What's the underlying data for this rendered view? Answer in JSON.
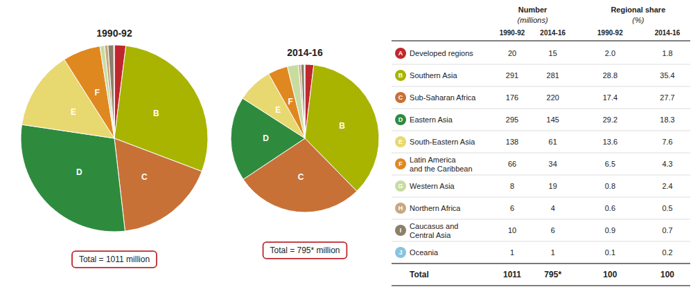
{
  "chart_data": [
    {
      "type": "pie",
      "title": "1990-92",
      "categories": [
        null,
        "B",
        "C",
        "D",
        "E",
        "F",
        null,
        null,
        null,
        null
      ],
      "values": [
        20,
        291,
        176,
        295,
        138,
        66,
        8,
        6,
        10,
        1
      ],
      "colors": [
        "#c0272d",
        "#a8b400",
        "#c87137",
        "#2e8b3e",
        "#e8d870",
        "#e08820",
        "#c8dca0",
        "#c8a882",
        "#8b8068",
        "#88c4e0"
      ],
      "annotations": [
        "Total = 1011 million"
      ]
    },
    {
      "type": "pie",
      "title": "2014-16",
      "categories": [
        null,
        "B",
        "C",
        "D",
        "E",
        "F",
        null,
        null,
        null,
        null
      ],
      "values": [
        15,
        281,
        220,
        145,
        61,
        34,
        19,
        4,
        6,
        1
      ],
      "colors": [
        "#c0272d",
        "#a8b400",
        "#c87137",
        "#2e8b3e",
        "#e8d870",
        "#e08820",
        "#c8dca0",
        "#c8a882",
        "#8b8068",
        "#88c4e0"
      ],
      "annotations": [
        "Total = 795* million"
      ]
    },
    {
      "type": "table",
      "column_groups": [
        {
          "title": "Number",
          "subtitle": "(millions)"
        },
        {
          "title": "Regional share",
          "subtitle": "(%)"
        }
      ],
      "columns": [
        "1990-92",
        "2014-16",
        "1990-92",
        "2014-16"
      ],
      "rows": [
        {
          "key": "A",
          "name": "Developed regions",
          "color": "#c0272d",
          "values": [
            20,
            15,
            2.0,
            1.8
          ],
          "value_labels": [
            "20",
            "15",
            "2.0",
            "1.8"
          ]
        },
        {
          "key": "B",
          "name": "Southern Asia",
          "color": "#a8b400",
          "values": [
            291,
            281,
            28.8,
            35.4
          ]
        },
        {
          "key": "C",
          "name": "Sub-Saharan Africa",
          "color": "#c87137",
          "values": [
            176,
            220,
            17.4,
            27.7
          ]
        },
        {
          "key": "D",
          "name": "Eastern Asia",
          "color": "#2e8b3e",
          "values": [
            295,
            145,
            29.2,
            18.3
          ]
        },
        {
          "key": "E",
          "name": "South-Eastern Asia",
          "color": "#e8d870",
          "values": [
            138,
            61,
            13.6,
            7.6
          ]
        },
        {
          "key": "F",
          "name": "Latin America\nand the Caribbean",
          "color": "#e08820",
          "values": [
            66,
            34,
            6.5,
            4.3
          ]
        },
        {
          "key": "G",
          "name": "Western Asia",
          "color": "#c8dca0",
          "values": [
            8,
            19,
            0.8,
            2.4
          ]
        },
        {
          "key": "H",
          "name": "Northern Africa",
          "color": "#c8a882",
          "values": [
            6,
            4,
            0.6,
            0.5
          ]
        },
        {
          "key": "I",
          "name": "Caucasus and\nCentral Asia",
          "color": "#8b8068",
          "values": [
            10,
            6,
            0.9,
            0.7
          ]
        },
        {
          "key": "J",
          "name": "Oceania",
          "color": "#88c4e0",
          "values": [
            1,
            1,
            0.1,
            0.2
          ]
        }
      ],
      "total": {
        "name": "Total",
        "values": [
          1011,
          795,
          100,
          100
        ],
        "value_labels": [
          "1011",
          "795*",
          "100",
          "100"
        ]
      }
    }
  ]
}
